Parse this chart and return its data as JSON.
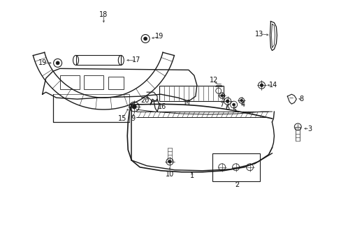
{
  "bg_color": "#ffffff",
  "line_color": "#1a1a1a",
  "label_color": "#111111",
  "label_fontsize": 7.0,
  "fig_width": 4.89,
  "fig_height": 3.6
}
